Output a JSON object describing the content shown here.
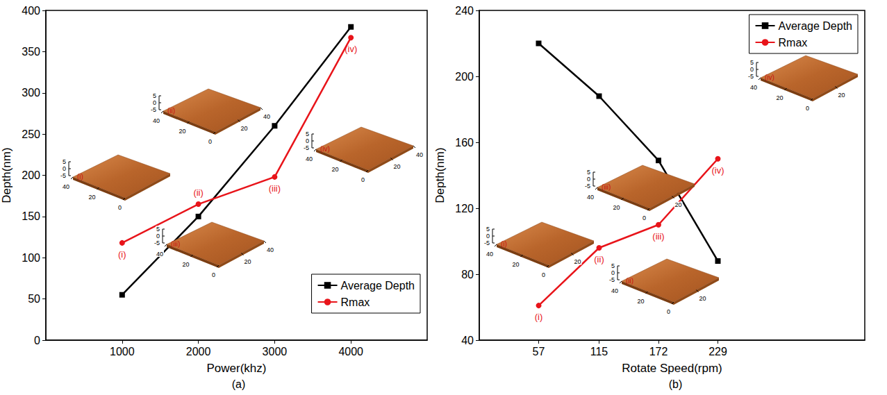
{
  "chart_data": [
    {
      "type": "line",
      "title": "(a)",
      "x_label": "Power(khz)",
      "y_label": "Depth(nm)",
      "xlim": [
        0,
        5000
      ],
      "xticks": [
        1000,
        2000,
        3000,
        4000
      ],
      "ylim": [
        0,
        400
      ],
      "yticks": [
        0,
        50,
        100,
        150,
        200,
        250,
        300,
        350,
        400
      ],
      "x": [
        1000,
        2000,
        3000,
        4000
      ],
      "legend": "lower right",
      "grid": false,
      "series": [
        {
          "name": "Average Depth",
          "color": "#000000",
          "marker": "square",
          "values": [
            55,
            150,
            260,
            380
          ]
        },
        {
          "name": "Rmax",
          "color": "#e8141a",
          "marker": "circle",
          "values": [
            118,
            165,
            198,
            367
          ],
          "point_labels": [
            "(i)",
            "(ii)",
            "(iii)",
            "(iv)"
          ]
        }
      ],
      "insets": [
        {
          "label": "(i)",
          "z_ticks": [
            5,
            0,
            -5
          ],
          "y_ticks": [
            40,
            20,
            0
          ],
          "x_ticks": []
        },
        {
          "label": "(ii)",
          "z_ticks": [
            5,
            0,
            -5
          ],
          "y_ticks": [
            40,
            20,
            0
          ],
          "x_ticks": [
            20,
            40
          ]
        },
        {
          "label": "(iii)",
          "z_ticks": [
            5,
            0,
            -5
          ],
          "y_ticks": [
            40,
            20,
            0
          ],
          "x_ticks": [
            20,
            40
          ]
        },
        {
          "label": "(iv)",
          "z_ticks": [
            5,
            0,
            -5
          ],
          "y_ticks": [
            40,
            20,
            0
          ],
          "x_ticks": [
            20,
            40
          ]
        }
      ]
    },
    {
      "type": "line",
      "title": "(b)",
      "x_label": "Rotate Speed(rpm)",
      "y_label": "Depth(nm)",
      "xlim": [
        0,
        370
      ],
      "xticks": [
        57,
        115,
        172,
        229
      ],
      "ylim": [
        40,
        240
      ],
      "yticks": [
        40,
        80,
        120,
        160,
        200,
        240
      ],
      "x": [
        57,
        115,
        172,
        229
      ],
      "legend": "upper right",
      "grid": false,
      "series": [
        {
          "name": "Average Depth",
          "color": "#000000",
          "marker": "square",
          "values": [
            220,
            188,
            149,
            88
          ]
        },
        {
          "name": "Rmax",
          "color": "#e8141a",
          "marker": "circle",
          "values": [
            61,
            96,
            110,
            150
          ],
          "point_labels": [
            "(i)",
            "(ii)",
            "(iii)",
            "(iv)"
          ]
        }
      ],
      "insets": [
        {
          "label": "(i)",
          "z_ticks": [
            5,
            0,
            -5
          ],
          "y_ticks": [
            40,
            20,
            0
          ],
          "x_ticks": [
            20
          ]
        },
        {
          "label": "(ii)",
          "z_ticks": [
            5,
            0,
            -5
          ],
          "y_ticks": [
            40,
            20,
            0
          ],
          "x_ticks": [
            20
          ]
        },
        {
          "label": "(iii)",
          "z_ticks": [
            5,
            0,
            -5
          ],
          "y_ticks": [
            40,
            20,
            0
          ],
          "x_ticks": [
            20
          ]
        },
        {
          "label": "(iv)",
          "z_ticks": [
            5,
            0,
            -5
          ],
          "y_ticks": [
            40,
            20,
            0
          ],
          "x_ticks": [
            20
          ]
        }
      ]
    }
  ]
}
